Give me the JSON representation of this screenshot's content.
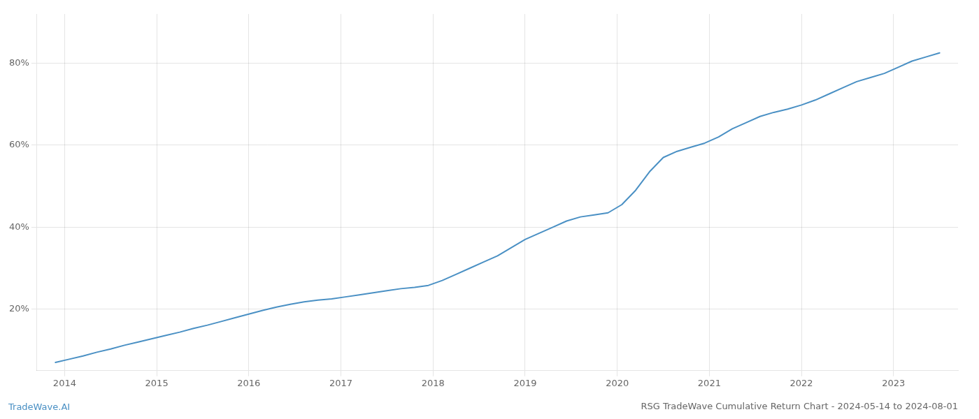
{
  "chart_data": {
    "type": "line",
    "title": "RSG TradeWave Cumulative Return Chart - 2024-05-14 to 2024-08-01",
    "annotations": [
      "TradeWave.AI"
    ],
    "color": "#4a90c4",
    "x": [
      2013.9,
      2014.05,
      2014.2,
      2014.35,
      2014.5,
      2014.65,
      2014.8,
      2014.95,
      2015.1,
      2015.25,
      2015.4,
      2015.55,
      2015.7,
      2015.85,
      2016.0,
      2016.15,
      2016.3,
      2016.45,
      2016.6,
      2016.75,
      2016.9,
      2017.05,
      2017.2,
      2017.35,
      2017.5,
      2017.65,
      2017.8,
      2017.95,
      2018.1,
      2018.25,
      2018.4,
      2018.55,
      2018.7,
      2018.85,
      2019.0,
      2019.15,
      2019.3,
      2019.45,
      2019.6,
      2019.75,
      2019.9,
      2020.05,
      2020.2,
      2020.35,
      2020.5,
      2020.65,
      2020.8,
      2020.95,
      2021.1,
      2021.25,
      2021.4,
      2021.55,
      2021.7,
      2021.85,
      2022.0,
      2022.15,
      2022.3,
      2022.45,
      2022.6,
      2022.75,
      2022.9,
      2023.05,
      2023.2,
      2023.35,
      2023.5
    ],
    "values": [
      7.0,
      7.8,
      8.6,
      9.5,
      10.3,
      11.2,
      12.0,
      12.8,
      13.6,
      14.4,
      15.3,
      16.1,
      17.0,
      17.9,
      18.8,
      19.7,
      20.5,
      21.2,
      21.8,
      22.2,
      22.5,
      23.0,
      23.5,
      24.0,
      24.5,
      25.0,
      25.3,
      25.8,
      27.0,
      28.5,
      30.0,
      31.5,
      33.0,
      35.0,
      37.0,
      38.5,
      40.0,
      41.5,
      42.5,
      43.0,
      43.5,
      45.5,
      49.0,
      53.5,
      57.0,
      58.5,
      59.5,
      60.5,
      62.0,
      64.0,
      65.5,
      67.0,
      68.0,
      68.8,
      69.8,
      71.0,
      72.5,
      74.0,
      75.5,
      76.5,
      77.5,
      79.0,
      80.5,
      81.5,
      82.5
    ],
    "xlim": [
      2013.7,
      2023.7
    ],
    "xticks": [
      2014,
      2015,
      2016,
      2017,
      2018,
      2019,
      2020,
      2021,
      2022,
      2023
    ],
    "ylim": [
      5,
      92
    ],
    "yticks": [
      {
        "value": 20,
        "label": "20%"
      },
      {
        "value": 40,
        "label": "40%"
      },
      {
        "value": 60,
        "label": "60%"
      },
      {
        "value": 80,
        "label": "80%"
      }
    ],
    "grid": true
  }
}
